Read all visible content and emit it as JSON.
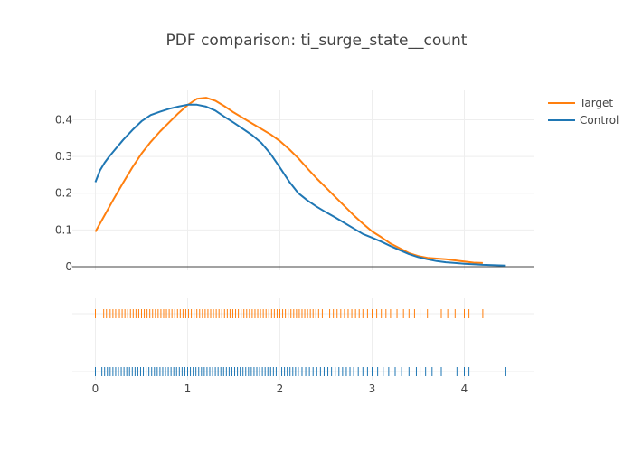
{
  "chart_data": {
    "type": "line",
    "title": "PDF comparison: ti_surge_state__count",
    "xlabel": "",
    "ylabel": "",
    "xlim": [
      -0.25,
      4.75
    ],
    "ylim": [
      -0.01,
      0.48
    ],
    "x_ticks": [
      "0",
      "1",
      "2",
      "3",
      "4"
    ],
    "y_ticks": [
      "0",
      "0.1",
      "0.2",
      "0.3",
      "0.4"
    ],
    "grid": true,
    "legend_position": "top-right",
    "series": [
      {
        "name": "Target",
        "color": "#ff7f0e",
        "x": [
          0.0,
          0.1,
          0.2,
          0.3,
          0.4,
          0.5,
          0.6,
          0.7,
          0.8,
          0.9,
          1.0,
          1.1,
          1.2,
          1.3,
          1.4,
          1.5,
          1.6,
          1.7,
          1.8,
          1.9,
          2.0,
          2.1,
          2.2,
          2.3,
          2.4,
          2.5,
          2.6,
          2.7,
          2.8,
          2.9,
          3.0,
          3.1,
          3.2,
          3.3,
          3.4,
          3.5,
          3.6,
          3.7,
          3.8,
          3.9,
          4.0,
          4.1,
          4.2
        ],
        "values": [
          0.095,
          0.14,
          0.185,
          0.228,
          0.27,
          0.308,
          0.34,
          0.368,
          0.393,
          0.418,
          0.44,
          0.457,
          0.46,
          0.452,
          0.437,
          0.42,
          0.405,
          0.39,
          0.375,
          0.36,
          0.342,
          0.32,
          0.295,
          0.267,
          0.24,
          0.215,
          0.19,
          0.165,
          0.14,
          0.117,
          0.096,
          0.08,
          0.063,
          0.05,
          0.037,
          0.029,
          0.024,
          0.022,
          0.02,
          0.017,
          0.014,
          0.011,
          0.01
        ]
      },
      {
        "name": "Control",
        "color": "#1f77b4",
        "x": [
          0.0,
          0.05,
          0.1,
          0.15,
          0.2,
          0.3,
          0.4,
          0.5,
          0.6,
          0.7,
          0.8,
          0.9,
          1.0,
          1.1,
          1.2,
          1.3,
          1.4,
          1.5,
          1.6,
          1.7,
          1.8,
          1.9,
          2.0,
          2.1,
          2.2,
          2.3,
          2.4,
          2.5,
          2.6,
          2.7,
          2.8,
          2.9,
          3.0,
          3.1,
          3.2,
          3.3,
          3.4,
          3.5,
          3.6,
          3.7,
          3.8,
          3.9,
          4.0,
          4.2,
          4.45
        ],
        "values": [
          0.23,
          0.262,
          0.283,
          0.3,
          0.315,
          0.345,
          0.372,
          0.396,
          0.413,
          0.422,
          0.43,
          0.436,
          0.441,
          0.441,
          0.436,
          0.425,
          0.408,
          0.392,
          0.375,
          0.358,
          0.337,
          0.307,
          0.27,
          0.232,
          0.2,
          0.18,
          0.163,
          0.148,
          0.134,
          0.119,
          0.104,
          0.089,
          0.079,
          0.068,
          0.056,
          0.045,
          0.034,
          0.026,
          0.02,
          0.015,
          0.012,
          0.01,
          0.008,
          0.005,
          0.003
        ]
      }
    ],
    "rug": [
      {
        "name": "Target",
        "color": "#ff7f0e",
        "values": [
          0.0,
          0.09,
          0.12,
          0.16,
          0.19,
          0.22,
          0.26,
          0.29,
          0.32,
          0.35,
          0.38,
          0.41,
          0.44,
          0.47,
          0.5,
          0.53,
          0.56,
          0.59,
          0.62,
          0.65,
          0.68,
          0.71,
          0.74,
          0.77,
          0.8,
          0.83,
          0.86,
          0.89,
          0.92,
          0.95,
          0.98,
          1.01,
          1.04,
          1.07,
          1.1,
          1.13,
          1.16,
          1.19,
          1.22,
          1.25,
          1.28,
          1.31,
          1.34,
          1.37,
          1.4,
          1.43,
          1.46,
          1.49,
          1.52,
          1.55,
          1.58,
          1.61,
          1.64,
          1.67,
          1.7,
          1.73,
          1.76,
          1.79,
          1.82,
          1.85,
          1.88,
          1.91,
          1.94,
          1.97,
          2.0,
          2.03,
          2.06,
          2.09,
          2.12,
          2.15,
          2.18,
          2.21,
          2.24,
          2.27,
          2.3,
          2.33,
          2.36,
          2.39,
          2.42,
          2.46,
          2.5,
          2.54,
          2.58,
          2.62,
          2.66,
          2.7,
          2.74,
          2.78,
          2.82,
          2.86,
          2.9,
          2.95,
          3.0,
          3.05,
          3.1,
          3.15,
          3.2,
          3.27,
          3.34,
          3.4,
          3.46,
          3.52,
          3.6,
          3.75,
          3.82,
          3.9,
          4.0,
          4.05,
          4.2
        ]
      },
      {
        "name": "Control",
        "color": "#1f77b4",
        "values": [
          0.0,
          0.07,
          0.1,
          0.13,
          0.16,
          0.19,
          0.22,
          0.25,
          0.28,
          0.31,
          0.34,
          0.37,
          0.4,
          0.43,
          0.46,
          0.49,
          0.52,
          0.55,
          0.58,
          0.61,
          0.64,
          0.67,
          0.7,
          0.73,
          0.76,
          0.79,
          0.82,
          0.85,
          0.88,
          0.91,
          0.94,
          0.97,
          1.0,
          1.03,
          1.06,
          1.09,
          1.12,
          1.15,
          1.18,
          1.21,
          1.24,
          1.27,
          1.3,
          1.33,
          1.36,
          1.39,
          1.42,
          1.45,
          1.48,
          1.51,
          1.54,
          1.57,
          1.6,
          1.63,
          1.66,
          1.69,
          1.72,
          1.75,
          1.78,
          1.81,
          1.84,
          1.87,
          1.9,
          1.93,
          1.96,
          1.99,
          2.02,
          2.05,
          2.08,
          2.11,
          2.14,
          2.17,
          2.2,
          2.24,
          2.28,
          2.32,
          2.36,
          2.4,
          2.44,
          2.48,
          2.52,
          2.56,
          2.6,
          2.64,
          2.68,
          2.72,
          2.76,
          2.8,
          2.85,
          2.9,
          2.95,
          3.0,
          3.06,
          3.12,
          3.18,
          3.25,
          3.32,
          3.4,
          3.48,
          3.52,
          3.58,
          3.65,
          3.75,
          3.92,
          4.0,
          4.05,
          4.45
        ]
      }
    ]
  }
}
